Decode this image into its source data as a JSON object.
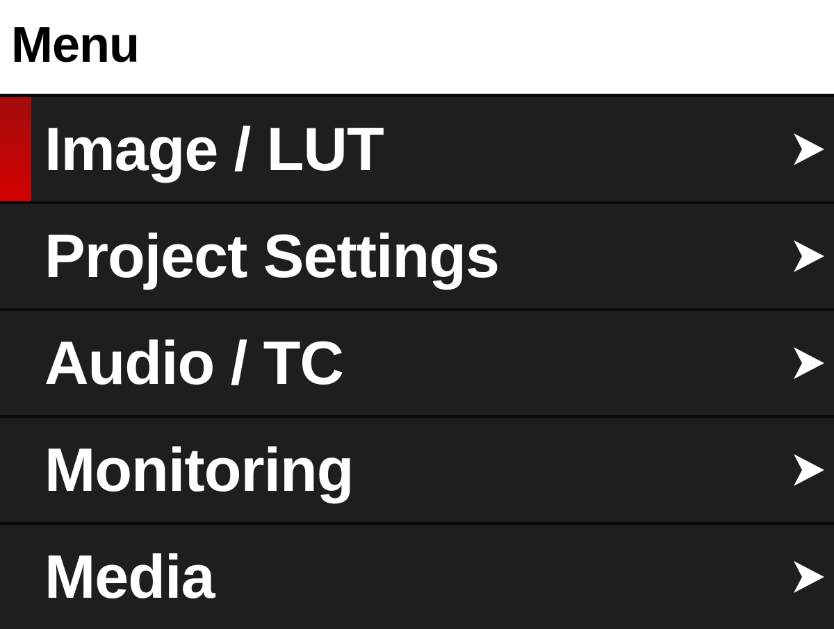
{
  "header": {
    "title": "Menu"
  },
  "menu": {
    "selected_index": 0,
    "accent_color": "#d40000",
    "items": [
      {
        "label": "Image / LUT",
        "icon": "chevron-right-icon",
        "selected": true
      },
      {
        "label": "Project Settings",
        "icon": "chevron-right-icon"
      },
      {
        "label": "Audio / TC",
        "icon": "chevron-right-icon"
      },
      {
        "label": "Monitoring",
        "icon": "chevron-right-icon"
      },
      {
        "label": "Media",
        "icon": "chevron-right-icon"
      }
    ]
  }
}
